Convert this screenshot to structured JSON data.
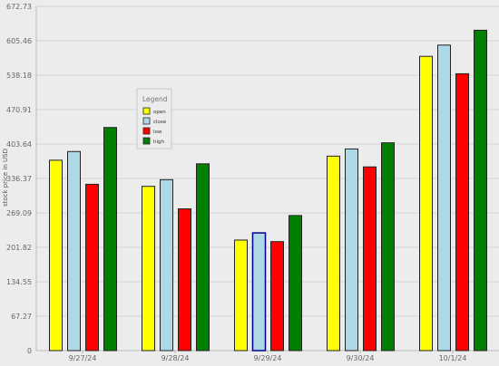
{
  "chart_data": {
    "type": "bar",
    "ylabel": "stock price in USD",
    "ylim": [
      0,
      672.73
    ],
    "y_ticks": [
      "0",
      "67.27",
      "134.55",
      "201.82",
      "269.09",
      "336.37",
      "403.64",
      "470.91",
      "538.18",
      "605.46",
      "672.73"
    ],
    "categories": [
      "9/27/24",
      "9/28/24",
      "9/29/24",
      "9/30/24",
      "10/1/24"
    ],
    "legend": {
      "title": "Legend",
      "placement": "upper-left"
    },
    "series": [
      {
        "name": "open",
        "color": "#ffff00",
        "values": [
          372,
          321,
          216,
          380,
          575
        ]
      },
      {
        "name": "close",
        "color": "#add8e6",
        "values": [
          389,
          334,
          230,
          394,
          597
        ]
      },
      {
        "name": "low",
        "color": "#ff0000",
        "values": [
          325,
          277,
          213,
          359,
          541
        ]
      },
      {
        "name": "high",
        "color": "#008000",
        "values": [
          436,
          365,
          264,
          406,
          626
        ]
      }
    ],
    "highlight": {
      "category_index": 2,
      "series_index": 1,
      "border_color": "#00008b"
    }
  }
}
